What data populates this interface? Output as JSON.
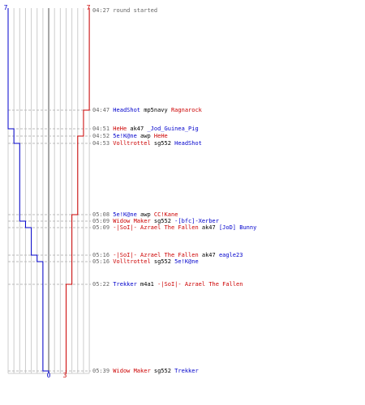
{
  "window": {
    "width": 450,
    "height": 500
  },
  "colors": {
    "blue": "#0000cc",
    "red": "#cc0000",
    "time": "#666666",
    "grid": "#cccccc",
    "center": "#888888"
  },
  "score": {
    "blue_start": "7",
    "red_start": "7",
    "blue_end": "0",
    "red_end": "3"
  },
  "events": [
    {
      "time": "04:27",
      "type": "note",
      "text": "round started"
    },
    {
      "time": "04:47",
      "killer": "HeadShot",
      "killer_team": "blue",
      "weapon": "mp5navy",
      "victim": "Ragnarock",
      "victim_team": "red"
    },
    {
      "time": "04:51",
      "killer": "HeHe",
      "killer_team": "red",
      "weapon": "ak47",
      "victim": "_Jod_Guinea_Pig",
      "victim_team": "blue"
    },
    {
      "time": "04:52",
      "killer": "5e!K@ne",
      "killer_team": "blue",
      "weapon": "awp",
      "victim": "HeHe",
      "victim_team": "red"
    },
    {
      "time": "04:53",
      "killer": "Volltrottel",
      "killer_team": "red",
      "weapon": "sg552",
      "victim": "HeadShot",
      "victim_team": "blue"
    },
    {
      "time": "05:08",
      "killer": "5e!K@ne",
      "killer_team": "blue",
      "weapon": "awp",
      "victim": "CC!Kane",
      "victim_team": "red"
    },
    {
      "time": "05:09",
      "killer": "Widow Maker",
      "killer_team": "red",
      "weapon": "sg552",
      "victim": "-[bfc]-Xerber",
      "victim_team": "blue"
    },
    {
      "time": "05:09",
      "killer": "-|SoI|- Azrael The Fallen",
      "killer_team": "red",
      "weapon": "ak47",
      "victim": "[JoD] Bunny",
      "victim_team": "blue"
    },
    {
      "time": "05:16",
      "killer": "-|SoI|- Azrael The Fallen",
      "killer_team": "red",
      "weapon": "ak47",
      "victim": "eagle23",
      "victim_team": "blue"
    },
    {
      "time": "05:16",
      "killer": "Volltrottel",
      "killer_team": "red",
      "weapon": "sg552",
      "victim": "5e!K@ne",
      "victim_team": "blue"
    },
    {
      "time": "05:22",
      "killer": "Trekker",
      "killer_team": "blue",
      "weapon": "m4a1",
      "victim": "-|SoI|- Azrael The Fallen",
      "victim_team": "red"
    },
    {
      "time": "05:39",
      "killer": "Widow Maker",
      "killer_team": "red",
      "weapon": "sg552",
      "victim": "Trekker",
      "victim_team": "blue"
    }
  ]
}
